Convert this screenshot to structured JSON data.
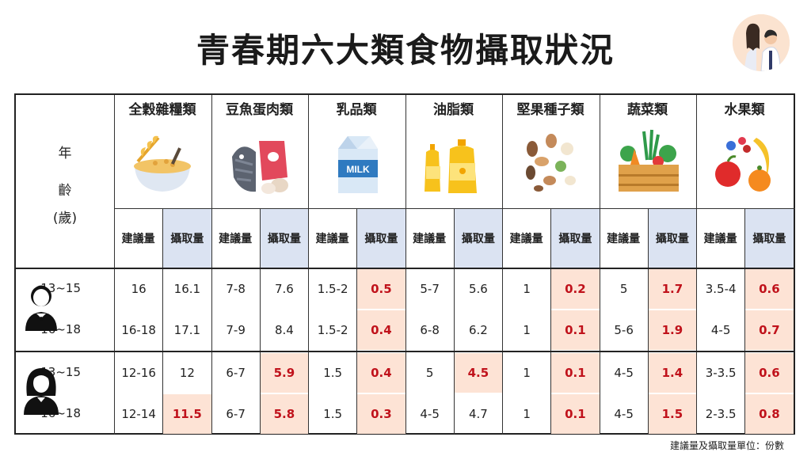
{
  "title": "青春期六大類食物攝取狀況",
  "header": {
    "age_label": [
      "年",
      "齡",
      "(歲)"
    ],
    "categories": [
      {
        "name": "全穀雜糧類",
        "icon": "grain-bowl-icon"
      },
      {
        "name": "豆魚蛋肉類",
        "icon": "fish-meat-egg-icon"
      },
      {
        "name": "乳品類",
        "icon": "milk-carton-icon",
        "icon_text": "MILK"
      },
      {
        "name": "油脂類",
        "icon": "oil-bottles-icon"
      },
      {
        "name": "堅果種子類",
        "icon": "nuts-icon"
      },
      {
        "name": "蔬菜類",
        "icon": "vegetable-crate-icon"
      },
      {
        "name": "水果類",
        "icon": "fruits-icon"
      }
    ],
    "sub_recommended": "建議量",
    "sub_intake": "攝取量"
  },
  "groups": [
    {
      "gender_icon": "male-student-icon",
      "rows": [
        {
          "age": "13~15",
          "values": [
            "16",
            "16.1",
            "7-8",
            "7.6",
            "1.5-2",
            "0.5",
            "5-7",
            "5.6",
            "1",
            "0.2",
            "5",
            "1.7",
            "3.5-4",
            "0.6"
          ]
        },
        {
          "age": "16~18",
          "values": [
            "16-18",
            "17.1",
            "7-9",
            "8.4",
            "1.5-2",
            "0.4",
            "6-8",
            "6.2",
            "1",
            "0.1",
            "5-6",
            "1.9",
            "4-5",
            "0.7"
          ]
        }
      ]
    },
    {
      "gender_icon": "female-student-icon",
      "rows": [
        {
          "age": "13~15",
          "values": [
            "12-16",
            "12",
            "6-7",
            "5.9",
            "1.5",
            "0.4",
            "5",
            "4.5",
            "1",
            "0.1",
            "4-5",
            "1.4",
            "3-3.5",
            "0.6"
          ]
        },
        {
          "age": "16~18",
          "values": [
            "12-14",
            "11.5",
            "6-7",
            "5.8",
            "1.5",
            "0.3",
            "4-5",
            "4.7",
            "1",
            "0.1",
            "4-5",
            "1.5",
            "2-3.5",
            "0.8"
          ]
        }
      ]
    }
  ],
  "highlighted_cells": [
    [
      0,
      5
    ],
    [
      0,
      9
    ],
    [
      0,
      11
    ],
    [
      0,
      13
    ],
    [
      1,
      5
    ],
    [
      1,
      9
    ],
    [
      1,
      11
    ],
    [
      1,
      13
    ],
    [
      2,
      3
    ],
    [
      2,
      5
    ],
    [
      2,
      7
    ],
    [
      2,
      9
    ],
    [
      2,
      11
    ],
    [
      2,
      13
    ],
    [
      3,
      1
    ],
    [
      3,
      3
    ],
    [
      3,
      5
    ],
    [
      3,
      9
    ],
    [
      3,
      11
    ],
    [
      3,
      13
    ]
  ],
  "footnote": "建議量及攝取量單位：份數",
  "colors": {
    "highlight_bg": "#fde3d5",
    "intake_header_bg": "#dbe3f2",
    "alert_text": "#c0121b"
  }
}
